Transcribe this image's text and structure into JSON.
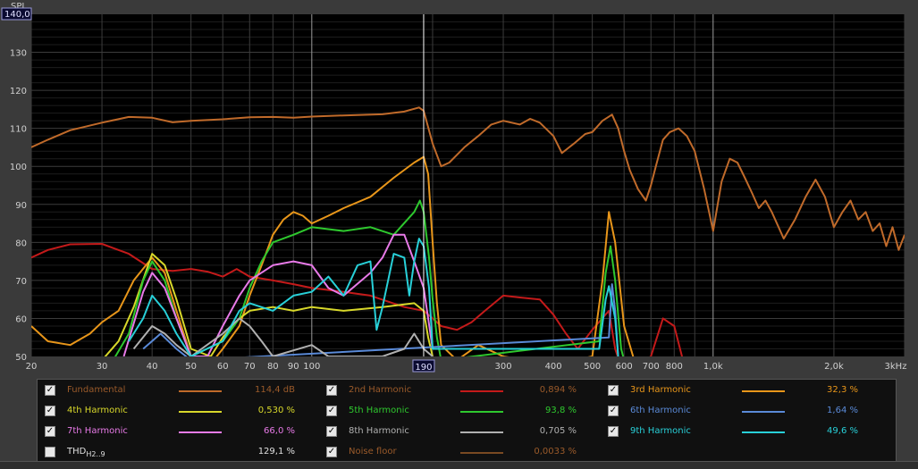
{
  "chart_data": {
    "type": "line",
    "ylabel": "SPL",
    "ymax_label": "140,0",
    "cursor_label": "190",
    "xscale": "log",
    "xlim": [
      20,
      3000
    ],
    "ylim": [
      50,
      140
    ],
    "x_ticks": [
      "20",
      "30",
      "40",
      "50",
      "60",
      "70",
      "80",
      "90",
      "100",
      "190",
      "300",
      "400",
      "500",
      "600",
      "700",
      "800",
      "1,0k",
      "2,0k",
      "3kHz"
    ],
    "y_ticks": [
      "130",
      "120",
      "110",
      "100",
      "90",
      "80",
      "70",
      "60",
      "50"
    ],
    "series": [
      {
        "name": "Fundamental",
        "color": "#c06a2a",
        "points": [
          [
            20,
            105
          ],
          [
            22,
            107
          ],
          [
            25,
            109.5
          ],
          [
            30,
            111.5
          ],
          [
            35,
            113
          ],
          [
            40,
            112.8
          ],
          [
            45,
            111.6
          ],
          [
            50,
            112
          ],
          [
            60,
            112.4
          ],
          [
            70,
            112.9
          ],
          [
            80,
            113
          ],
          [
            90,
            112.8
          ],
          [
            100,
            113.1
          ],
          [
            120,
            113.4
          ],
          [
            150,
            113.7
          ],
          [
            170,
            114.4
          ],
          [
            185,
            115.5
          ],
          [
            190,
            114.6
          ],
          [
            200,
            106
          ],
          [
            210,
            100
          ],
          [
            220,
            101
          ],
          [
            240,
            105
          ],
          [
            260,
            108
          ],
          [
            280,
            111
          ],
          [
            300,
            112
          ],
          [
            330,
            111
          ],
          [
            350,
            112.5
          ],
          [
            370,
            111.5
          ],
          [
            400,
            108
          ],
          [
            420,
            103.5
          ],
          [
            450,
            106
          ],
          [
            480,
            108.5
          ],
          [
            500,
            109
          ],
          [
            530,
            112
          ],
          [
            560,
            113.6
          ],
          [
            580,
            110
          ],
          [
            600,
            104
          ],
          [
            620,
            99
          ],
          [
            650,
            94
          ],
          [
            680,
            91
          ],
          [
            700,
            95
          ],
          [
            720,
            100
          ],
          [
            750,
            107
          ],
          [
            780,
            109
          ],
          [
            820,
            110
          ],
          [
            860,
            108
          ],
          [
            900,
            104
          ],
          [
            950,
            94
          ],
          [
            1000,
            83
          ],
          [
            1050,
            96
          ],
          [
            1100,
            102
          ],
          [
            1150,
            101
          ],
          [
            1200,
            97
          ],
          [
            1250,
            93
          ],
          [
            1300,
            89
          ],
          [
            1350,
            91
          ],
          [
            1400,
            88
          ],
          [
            1500,
            81
          ],
          [
            1600,
            86
          ],
          [
            1700,
            92
          ],
          [
            1800,
            96.5
          ],
          [
            1900,
            92
          ],
          [
            2000,
            84
          ],
          [
            2100,
            88
          ],
          [
            2200,
            91
          ],
          [
            2300,
            86
          ],
          [
            2400,
            88
          ],
          [
            2500,
            83
          ],
          [
            2600,
            85
          ],
          [
            2700,
            79
          ],
          [
            2800,
            84
          ],
          [
            2900,
            78
          ],
          [
            3000,
            82
          ]
        ]
      },
      {
        "name": "2nd Harmonic",
        "color": "#c41a1a",
        "points": [
          [
            20,
            76
          ],
          [
            22,
            78
          ],
          [
            25,
            79.5
          ],
          [
            30,
            79.6
          ],
          [
            35,
            77
          ],
          [
            40,
            73
          ],
          [
            45,
            72.5
          ],
          [
            50,
            73
          ],
          [
            55,
            72.3
          ],
          [
            60,
            71
          ],
          [
            65,
            73
          ],
          [
            70,
            71
          ],
          [
            80,
            70
          ],
          [
            90,
            69
          ],
          [
            100,
            68
          ],
          [
            120,
            67
          ],
          [
            140,
            66
          ],
          [
            170,
            63
          ],
          [
            190,
            62
          ],
          [
            200,
            60
          ],
          [
            210,
            58
          ],
          [
            230,
            57
          ],
          [
            250,
            59
          ],
          [
            270,
            62
          ],
          [
            300,
            66
          ],
          [
            330,
            65.5
          ],
          [
            370,
            65
          ],
          [
            400,
            61
          ],
          [
            430,
            56
          ],
          [
            460,
            52
          ],
          [
            500,
            57
          ],
          [
            550,
            62
          ],
          [
            570,
            52
          ],
          [
            600,
            45
          ],
          [
            700,
            50
          ],
          [
            750,
            60
          ],
          [
            800,
            58
          ],
          [
            860,
            45
          ]
        ]
      },
      {
        "name": "3rd Harmonic",
        "color": "#e8961a",
        "points": [
          [
            20,
            58
          ],
          [
            22,
            54
          ],
          [
            25,
            53
          ],
          [
            28,
            56
          ],
          [
            30,
            59
          ],
          [
            33,
            62
          ],
          [
            36,
            70
          ],
          [
            40,
            76
          ],
          [
            43,
            72
          ],
          [
            46,
            62
          ],
          [
            50,
            50
          ],
          [
            55,
            47
          ],
          [
            60,
            52
          ],
          [
            66,
            58
          ],
          [
            70,
            66
          ],
          [
            75,
            74
          ],
          [
            80,
            82
          ],
          [
            85,
            86
          ],
          [
            90,
            88
          ],
          [
            95,
            87
          ],
          [
            100,
            85
          ],
          [
            110,
            87
          ],
          [
            120,
            89
          ],
          [
            140,
            92
          ],
          [
            160,
            97
          ],
          [
            180,
            101
          ],
          [
            190,
            102.5
          ],
          [
            195,
            98
          ],
          [
            200,
            80
          ],
          [
            205,
            64
          ],
          [
            210,
            53
          ],
          [
            230,
            49
          ],
          [
            260,
            53
          ],
          [
            300,
            50
          ],
          [
            400,
            48
          ],
          [
            500,
            50
          ],
          [
            530,
            70
          ],
          [
            550,
            88
          ],
          [
            570,
            80
          ],
          [
            600,
            58
          ],
          [
            640,
            48
          ]
        ]
      },
      {
        "name": "4th Harmonic",
        "color": "#d8d82a",
        "points": [
          [
            30,
            49
          ],
          [
            33,
            54
          ],
          [
            36,
            63
          ],
          [
            40,
            77
          ],
          [
            43,
            74
          ],
          [
            46,
            65
          ],
          [
            50,
            52
          ],
          [
            56,
            50
          ],
          [
            60,
            55
          ],
          [
            66,
            60
          ],
          [
            70,
            62
          ],
          [
            80,
            63
          ],
          [
            90,
            62
          ],
          [
            100,
            63
          ],
          [
            120,
            62
          ],
          [
            150,
            63
          ],
          [
            180,
            64
          ],
          [
            190,
            62
          ],
          [
            195,
            55
          ],
          [
            200,
            50
          ]
        ]
      },
      {
        "name": "5th Harmonic",
        "color": "#2ec82e",
        "points": [
          [
            32,
            49
          ],
          [
            35,
            56
          ],
          [
            38,
            70
          ],
          [
            40,
            75
          ],
          [
            43,
            70
          ],
          [
            46,
            60
          ],
          [
            50,
            50
          ],
          [
            60,
            54
          ],
          [
            66,
            60
          ],
          [
            70,
            68
          ],
          [
            75,
            75
          ],
          [
            80,
            80
          ],
          [
            90,
            82
          ],
          [
            100,
            84
          ],
          [
            120,
            83
          ],
          [
            140,
            84
          ],
          [
            160,
            82
          ],
          [
            180,
            88
          ],
          [
            186,
            91
          ],
          [
            190,
            88
          ],
          [
            196,
            76
          ],
          [
            200,
            65
          ],
          [
            205,
            55
          ],
          [
            210,
            49
          ],
          [
            520,
            54
          ],
          [
            540,
            72
          ],
          [
            555,
            79
          ],
          [
            570,
            70
          ],
          [
            590,
            52
          ],
          [
            600,
            49
          ]
        ]
      },
      {
        "name": "6th Harmonic",
        "color": "#5a8ad8",
        "points": [
          [
            38,
            52
          ],
          [
            42,
            56
          ],
          [
            46,
            52
          ],
          [
            50,
            49
          ],
          [
            550,
            55
          ],
          [
            560,
            69
          ],
          [
            570,
            62
          ],
          [
            580,
            50
          ]
        ]
      },
      {
        "name": "7th Harmonic",
        "color": "#e87ae8",
        "points": [
          [
            34,
            50
          ],
          [
            38,
            67
          ],
          [
            40,
            72
          ],
          [
            43,
            68
          ],
          [
            46,
            60
          ],
          [
            50,
            50
          ],
          [
            55,
            50
          ],
          [
            60,
            58
          ],
          [
            66,
            66
          ],
          [
            70,
            70
          ],
          [
            80,
            74
          ],
          [
            90,
            75
          ],
          [
            100,
            74
          ],
          [
            110,
            68
          ],
          [
            120,
            66
          ],
          [
            140,
            72
          ],
          [
            150,
            76
          ],
          [
            160,
            82
          ],
          [
            170,
            82
          ],
          [
            180,
            75
          ],
          [
            190,
            68
          ],
          [
            195,
            60
          ],
          [
            200,
            52
          ]
        ]
      },
      {
        "name": "8th Harmonic",
        "color": "#b0b0b0",
        "points": [
          [
            36,
            52
          ],
          [
            40,
            58
          ],
          [
            43,
            56
          ],
          [
            46,
            53
          ],
          [
            50,
            50
          ],
          [
            60,
            56
          ],
          [
            66,
            60
          ],
          [
            70,
            58
          ],
          [
            75,
            54
          ],
          [
            80,
            50
          ],
          [
            100,
            53
          ],
          [
            110,
            50
          ],
          [
            150,
            50
          ],
          [
            170,
            52
          ],
          [
            180,
            56
          ],
          [
            190,
            52
          ],
          [
            200,
            50
          ]
        ]
      },
      {
        "name": "9th Harmonic",
        "color": "#28d0d8",
        "points": [
          [
            35,
            54
          ],
          [
            38,
            60
          ],
          [
            40,
            66
          ],
          [
            43,
            62
          ],
          [
            46,
            56
          ],
          [
            50,
            50
          ],
          [
            60,
            54
          ],
          [
            66,
            62
          ],
          [
            70,
            64
          ],
          [
            80,
            62
          ],
          [
            90,
            66
          ],
          [
            100,
            67
          ],
          [
            110,
            71
          ],
          [
            120,
            66
          ],
          [
            130,
            74
          ],
          [
            140,
            75
          ],
          [
            145,
            57
          ],
          [
            150,
            63
          ],
          [
            160,
            77
          ],
          [
            170,
            76
          ],
          [
            175,
            66
          ],
          [
            180,
            75
          ],
          [
            185,
            81
          ],
          [
            190,
            79
          ],
          [
            196,
            68
          ],
          [
            200,
            52
          ],
          [
            520,
            52
          ],
          [
            540,
            65
          ],
          [
            550,
            68.5
          ],
          [
            570,
            60
          ],
          [
            580,
            50
          ]
        ]
      }
    ]
  },
  "legend": {
    "items": [
      {
        "label": "Fundamental",
        "value": "114,4 dB",
        "color": "#c06a2a",
        "checked": true,
        "dim": true
      },
      {
        "label": "2nd Harmonic",
        "value": "0,894 %",
        "color": "#c41a1a",
        "checked": true,
        "dim": true
      },
      {
        "label": "3rd Harmonic",
        "value": "32,3 %",
        "color": "#e8961a",
        "checked": true,
        "dim": false
      },
      {
        "label": "4th Harmonic",
        "value": "0,530 %",
        "color": "#d8d82a",
        "checked": true,
        "dim": false
      },
      {
        "label": "5th Harmonic",
        "value": "93,8 %",
        "color": "#2ec82e",
        "checked": true,
        "dim": false
      },
      {
        "label": "6th Harmonic",
        "value": "1,64 %",
        "color": "#5a8ad8",
        "checked": true,
        "dim": false
      },
      {
        "label": "7th Harmonic",
        "value": "66,0 %",
        "color": "#e87ae8",
        "checked": true,
        "dim": false
      },
      {
        "label": "8th Harmonic",
        "value": "0,705 %",
        "color": "#b0b0b0",
        "checked": true,
        "dim": false
      },
      {
        "label": "9th Harmonic",
        "value": "49,6 %",
        "color": "#28d0d8",
        "checked": true,
        "dim": false
      },
      {
        "label": "THD",
        "sub": "H2..9",
        "value": "129,1 %",
        "color": "",
        "checked": false,
        "dim": false
      },
      {
        "label": "Noise floor",
        "value": "0,0033 %",
        "color": "#7a4a22",
        "checked": true,
        "dim": true
      }
    ],
    "check_mark": "✓"
  }
}
